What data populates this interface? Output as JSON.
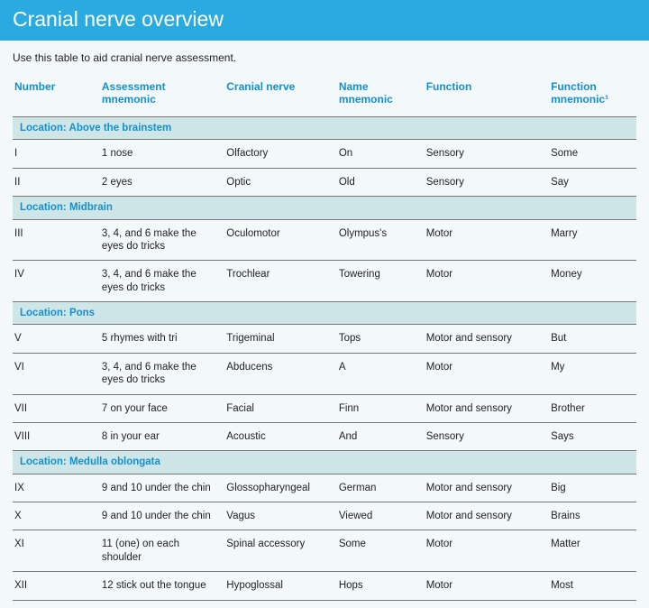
{
  "title": "Cranial nerve overview",
  "intro": "Use this table to aid cranial nerve assessment.",
  "columns": [
    "Number",
    "Assessment mnemonic",
    "Cranial nerve",
    "Name mnemonic",
    "Function",
    "Function mnemonic¹"
  ],
  "sections": [
    {
      "label": "Location: Above the brainstem",
      "rows": [
        {
          "num": "I",
          "assess": "1 nose",
          "nerve": "Olfactory",
          "name_mn": "On",
          "func": "Sensory",
          "func_mn": "Some"
        },
        {
          "num": "II",
          "assess": "2 eyes",
          "nerve": "Optic",
          "name_mn": "Old",
          "func": "Sensory",
          "func_mn": "Say"
        }
      ]
    },
    {
      "label": "Location: Midbrain",
      "rows": [
        {
          "num": "III",
          "assess": "3, 4, and 6 make the eyes do tricks",
          "nerve": "Oculomotor",
          "name_mn": "Olympus's",
          "func": "Motor",
          "func_mn": "Marry"
        },
        {
          "num": "IV",
          "assess": "3, 4, and 6 make the eyes do tricks",
          "nerve": "Trochlear",
          "name_mn": "Towering",
          "func": "Motor",
          "func_mn": "Money"
        }
      ]
    },
    {
      "label": "Location: Pons",
      "rows": [
        {
          "num": "V",
          "assess": "5 rhymes with tri",
          "nerve": "Trigeminal",
          "name_mn": "Tops",
          "func": "Motor and sensory",
          "func_mn": "But"
        },
        {
          "num": "VI",
          "assess": "3, 4, and 6 make the eyes do tricks",
          "nerve": "Abducens",
          "name_mn": "A",
          "func": "Motor",
          "func_mn": "My"
        },
        {
          "num": "VII",
          "assess": "7 on your face",
          "nerve": "Facial",
          "name_mn": "Finn",
          "func": "Motor and sensory",
          "func_mn": "Brother"
        },
        {
          "num": "VIII",
          "assess": "8 in your ear",
          "nerve": "Acoustic",
          "name_mn": "And",
          "func": "Sensory",
          "func_mn": "Says"
        }
      ]
    },
    {
      "label": "Location: Medulla oblongata",
      "rows": [
        {
          "num": "IX",
          "assess": "9 and 10 under the chin",
          "nerve": "Glossopharyngeal",
          "name_mn": "German",
          "func": "Motor and sensory",
          "func_mn": "Big"
        },
        {
          "num": "X",
          "assess": "9 and 10 under the chin",
          "nerve": "Vagus",
          "name_mn": "Viewed",
          "func": "Motor and sensory",
          "func_mn": "Brains"
        },
        {
          "num": "XI",
          "assess": "11 (one) on each shoulder",
          "nerve": "Spinal accessory",
          "name_mn": "Some",
          "func": "Motor",
          "func_mn": "Matter"
        },
        {
          "num": "XII",
          "assess": "12 stick out the tongue",
          "nerve": "Hypoglossal",
          "name_mn": "Hops",
          "func": "Motor",
          "func_mn": "Most"
        }
      ]
    }
  ],
  "style": {
    "banner_bg": "#29abe2",
    "banner_fg": "#ffffff",
    "page_bg": "#f3f9fb",
    "section_bg": "#cfe6e8",
    "accent": "#158fcc",
    "rule": "#777777",
    "text": "#222222"
  }
}
